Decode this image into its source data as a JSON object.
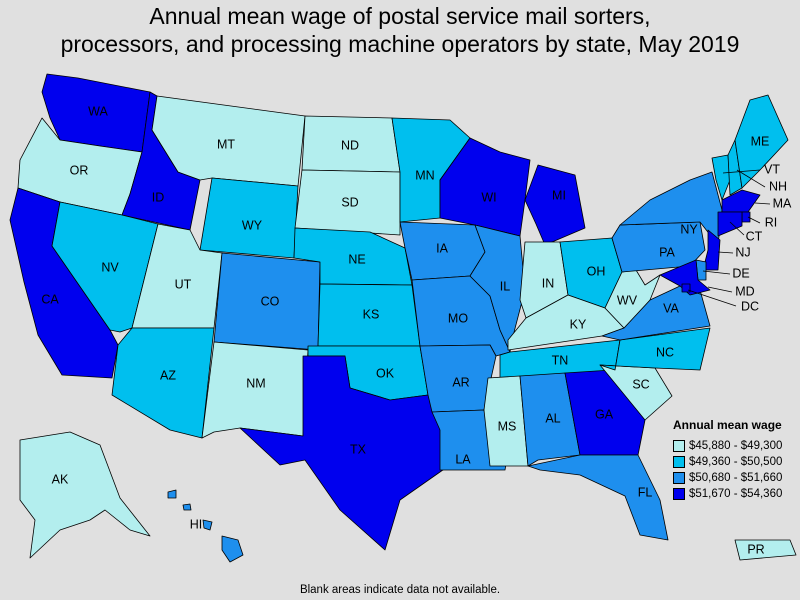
{
  "title_lines": [
    "Annual mean wage of postal service mail sorters,",
    "processors, and processing machine operators by state, May 2019"
  ],
  "legend": {
    "title": "Annual mean wage",
    "classes": [
      {
        "range": "$45,880 - $49,300",
        "color": "#b3eeee"
      },
      {
        "range": "$49,360 - $50,500",
        "color": "#00bfee"
      },
      {
        "range": "$50,680 - $51,660",
        "color": "#1e8fee"
      },
      {
        "range": "$51,670 - $54,360",
        "color": "#0000ee"
      }
    ]
  },
  "footnote": "Blank areas indicate data not available.",
  "states": [
    {
      "abbr": "WA",
      "class": 3
    },
    {
      "abbr": "OR",
      "class": 0
    },
    {
      "abbr": "CA",
      "class": 3
    },
    {
      "abbr": "ID",
      "class": 3
    },
    {
      "abbr": "NV",
      "class": 1
    },
    {
      "abbr": "MT",
      "class": 0
    },
    {
      "abbr": "WY",
      "class": 1
    },
    {
      "abbr": "UT",
      "class": 0
    },
    {
      "abbr": "AZ",
      "class": 1
    },
    {
      "abbr": "CO",
      "class": 2
    },
    {
      "abbr": "NM",
      "class": 0
    },
    {
      "abbr": "ND",
      "class": 0
    },
    {
      "abbr": "SD",
      "class": 0
    },
    {
      "abbr": "NE",
      "class": 1
    },
    {
      "abbr": "KS",
      "class": 1
    },
    {
      "abbr": "OK",
      "class": 1
    },
    {
      "abbr": "TX",
      "class": 3
    },
    {
      "abbr": "MN",
      "class": 1
    },
    {
      "abbr": "IA",
      "class": 2
    },
    {
      "abbr": "MO",
      "class": 2
    },
    {
      "abbr": "AR",
      "class": 2
    },
    {
      "abbr": "LA",
      "class": 2
    },
    {
      "abbr": "WI",
      "class": 3
    },
    {
      "abbr": "IL",
      "class": 2
    },
    {
      "abbr": "MI",
      "class": 3
    },
    {
      "abbr": "IN",
      "class": 0
    },
    {
      "abbr": "OH",
      "class": 1
    },
    {
      "abbr": "KY",
      "class": 0
    },
    {
      "abbr": "TN",
      "class": 1
    },
    {
      "abbr": "MS",
      "class": 0
    },
    {
      "abbr": "AL",
      "class": 2
    },
    {
      "abbr": "GA",
      "class": 3
    },
    {
      "abbr": "FL",
      "class": 2
    },
    {
      "abbr": "SC",
      "class": 0
    },
    {
      "abbr": "NC",
      "class": 1
    },
    {
      "abbr": "VA",
      "class": 2
    },
    {
      "abbr": "WV",
      "class": 0
    },
    {
      "abbr": "PA",
      "class": 2
    },
    {
      "abbr": "NY",
      "class": 2
    },
    {
      "abbr": "VT",
      "class": 1
    },
    {
      "abbr": "NH",
      "class": 1
    },
    {
      "abbr": "ME",
      "class": 1
    },
    {
      "abbr": "MA",
      "class": 3
    },
    {
      "abbr": "RI",
      "class": 3
    },
    {
      "abbr": "CT",
      "class": 3
    },
    {
      "abbr": "NJ",
      "class": 3
    },
    {
      "abbr": "DE",
      "class": 2
    },
    {
      "abbr": "MD",
      "class": 3
    },
    {
      "abbr": "DC",
      "class": 3
    },
    {
      "abbr": "AK",
      "class": 0
    },
    {
      "abbr": "HI",
      "class": 2
    },
    {
      "abbr": "PR",
      "class": 0
    }
  ]
}
